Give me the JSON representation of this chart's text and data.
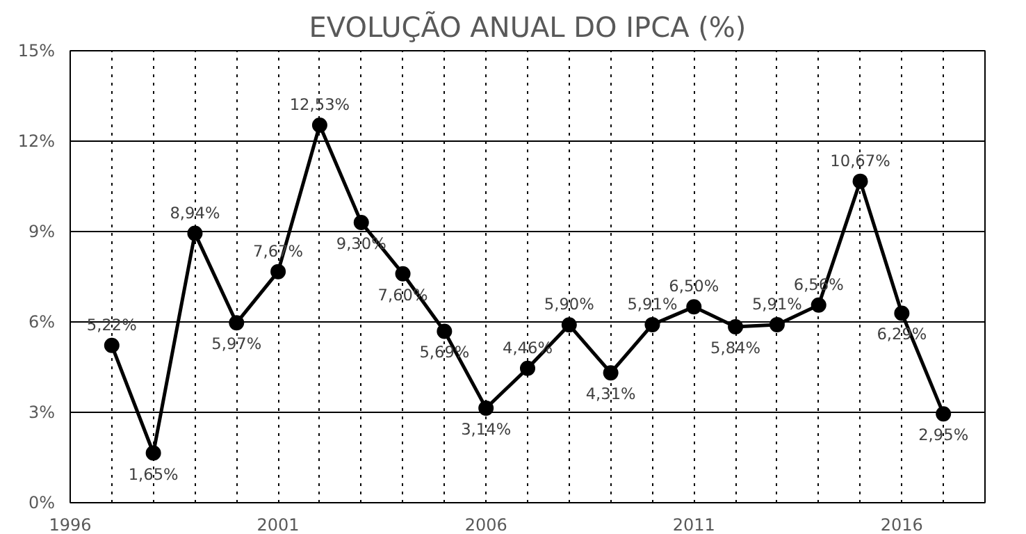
{
  "chart_data": {
    "type": "line",
    "title": "EVOLUÇÃO ANUAL DO IPCA (%)",
    "x": [
      1997,
      1998,
      1999,
      2000,
      2001,
      2002,
      2003,
      2004,
      2005,
      2006,
      2007,
      2008,
      2009,
      2010,
      2011,
      2012,
      2013,
      2014,
      2015,
      2016,
      2017
    ],
    "series": [
      {
        "color": "#000000",
        "values": [
          5.22,
          1.65,
          8.94,
          5.97,
          7.67,
          12.53,
          9.3,
          7.6,
          5.69,
          3.14,
          4.46,
          5.9,
          4.31,
          5.91,
          6.5,
          5.84,
          5.91,
          6.56,
          10.67,
          6.29,
          2.95
        ],
        "value_labels": [
          "5,22%",
          "1,65%",
          "8,94%",
          "5,97%",
          "7,67%",
          "12,53%",
          "9,30%",
          "7,60%",
          "5,69%",
          "3,14%",
          "4,46%",
          "5,90%",
          "4,31%",
          "5,91%",
          "6,50%",
          "5,84%",
          "5,91%",
          "6,56%",
          "10,67%",
          "6,29%",
          "2,95%"
        ]
      }
    ],
    "marker": "circle",
    "line_style": "solid",
    "grid": true,
    "xlim": [
      1996,
      2018
    ],
    "xticks": [
      1996,
      {
        "value": 1997,
        "label": null
      },
      {
        "value": 1998,
        "label": null
      },
      {
        "value": 1999,
        "label": null
      },
      {
        "value": 2000,
        "label": null
      },
      2001,
      {
        "value": 2002,
        "label": null
      },
      {
        "value": 2003,
        "label": null
      },
      {
        "value": 2004,
        "label": null
      },
      {
        "value": 2005,
        "label": null
      },
      2006,
      {
        "value": 2007,
        "label": null
      },
      {
        "value": 2008,
        "label": null
      },
      {
        "value": 2009,
        "label": null
      },
      {
        "value": 2010,
        "label": null
      },
      2011,
      {
        "value": 2012,
        "label": null
      },
      {
        "value": 2013,
        "label": null
      },
      {
        "value": 2014,
        "label": null
      },
      {
        "value": 2015,
        "label": null
      },
      2016,
      {
        "value": 2017,
        "label": null
      },
      {
        "value": 2018,
        "label": null
      }
    ],
    "ylim": [
      0,
      15
    ],
    "yticks": [
      {
        "value": 0,
        "label": "0%"
      },
      {
        "value": 3,
        "label": "3%"
      },
      {
        "value": 6,
        "label": "6%"
      },
      {
        "value": 9,
        "label": "9%"
      },
      {
        "value": 12,
        "label": "12%"
      },
      {
        "value": 15,
        "label": "15%"
      }
    ]
  }
}
